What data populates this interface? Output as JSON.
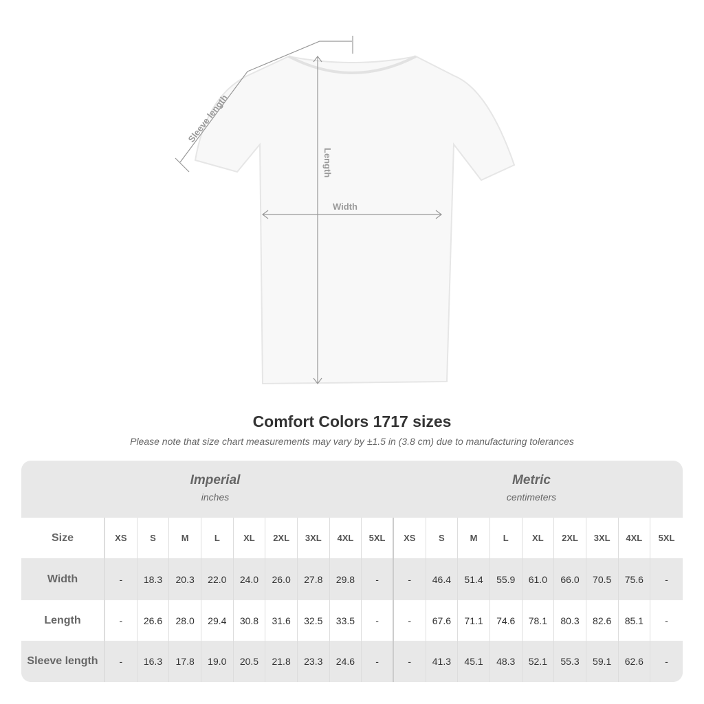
{
  "diagram": {
    "sleeve_label": "Sleeve length",
    "length_label": "Length",
    "width_label": "Width"
  },
  "title": "Comfort Colors 1717 sizes",
  "note": "Please note that size chart measurements may vary by ±1.5 in (3.8 cm) due to manufacturing tolerances",
  "imperial": {
    "title": "Imperial",
    "unit": "inches"
  },
  "metric": {
    "title": "Metric",
    "unit": "centimeters"
  },
  "size_label": "Size",
  "sizes": [
    "XS",
    "S",
    "M",
    "L",
    "XL",
    "2XL",
    "3XL",
    "4XL",
    "5XL"
  ],
  "rows": [
    {
      "label": "Width",
      "imperial": [
        "-",
        "18.3",
        "20.3",
        "22.0",
        "24.0",
        "26.0",
        "27.8",
        "29.8",
        "-"
      ],
      "metric": [
        "-",
        "46.4",
        "51.4",
        "55.9",
        "61.0",
        "66.0",
        "70.5",
        "75.6",
        "-"
      ]
    },
    {
      "label": "Length",
      "imperial": [
        "-",
        "26.6",
        "28.0",
        "29.4",
        "30.8",
        "31.6",
        "32.5",
        "33.5",
        "-"
      ],
      "metric": [
        "-",
        "67.6",
        "71.1",
        "74.6",
        "78.1",
        "80.3",
        "82.6",
        "85.1",
        "-"
      ]
    },
    {
      "label": "Sleeve length",
      "imperial": [
        "-",
        "16.3",
        "17.8",
        "19.0",
        "20.5",
        "21.8",
        "23.3",
        "24.6",
        "-"
      ],
      "metric": [
        "-",
        "41.3",
        "45.1",
        "48.3",
        "52.1",
        "55.3",
        "59.1",
        "62.6",
        "-"
      ]
    }
  ]
}
